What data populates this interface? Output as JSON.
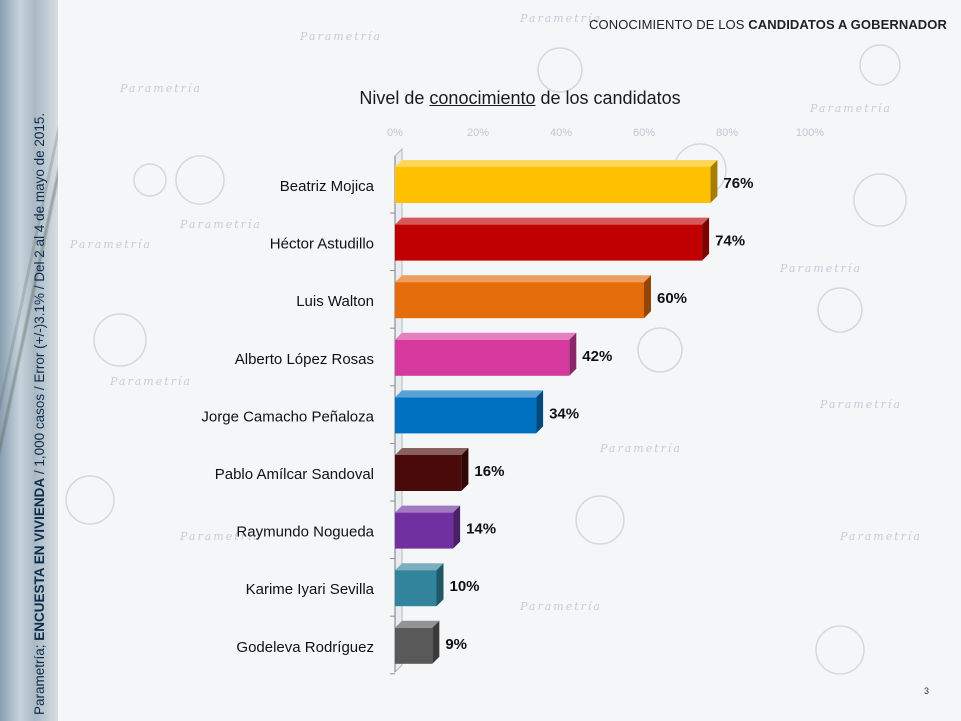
{
  "header": {
    "title_prefix": "CONOCIMIENTO DE LOS",
    "title_bold": "CANDIDATOS A GOBERNADOR"
  },
  "sidebar": {
    "source_prefix": "Parametría;",
    "source_bold": "ENCUESTA EN VIVIENDA",
    "source_rest": "/ 1,000 casos / Error (+/-)3.1% / Del 2 al 4 de mayo de 2015."
  },
  "title_parts": {
    "before": "Nivel de",
    "underlined": "conocimiento",
    "after": "de los candidatos"
  },
  "watermark_text": "Parametría",
  "page_number": "3",
  "chart_data": {
    "type": "bar",
    "orientation": "horizontal",
    "title": "Nivel de conocimiento de los candidatos",
    "categories": [
      "Beatriz Mojica",
      "Héctor Astudillo",
      "Luis Walton",
      "Alberto López Rosas",
      "Jorge Camacho Peñaloza",
      "Pablo Amílcar Sandoval",
      "Raymundo Nogueda",
      "Karime Iyari Sevilla",
      "Godeleva Rodríguez"
    ],
    "values": [
      76,
      74,
      60,
      42,
      34,
      16,
      14,
      10,
      9
    ],
    "value_labels": [
      "76%",
      "74%",
      "60%",
      "42%",
      "34%",
      "16%",
      "14%",
      "10%",
      "9%"
    ],
    "colors": [
      "#FFC000",
      "#C00000",
      "#E46C0A",
      "#D63A9E",
      "#0070C0",
      "#4A0A0A",
      "#7030A0",
      "#31849B",
      "#595959"
    ],
    "xlim": [
      0,
      100
    ],
    "axis_tick_labels": [
      "0%",
      "20%",
      "40%",
      "60%",
      "80%",
      "100%"
    ],
    "xlabel": "",
    "ylabel": "",
    "grid": false,
    "legend": "none"
  }
}
